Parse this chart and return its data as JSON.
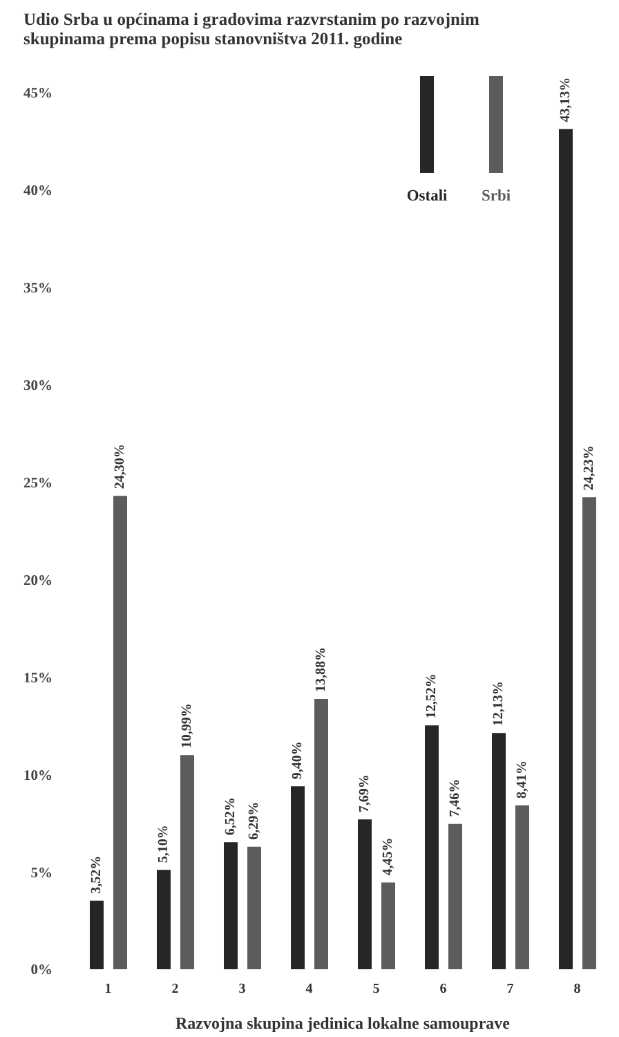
{
  "chart_data": {
    "type": "bar",
    "title": "Udio Srba u općinama i gradovima razvrstanim po razvojnim skupinama prema popisu stanovništva 2011. godine",
    "xlabel": "Razvojna skupina jedinica lokalne samouprave",
    "categories": [
      "1",
      "2",
      "3",
      "4",
      "5",
      "6",
      "7",
      "8"
    ],
    "series": [
      {
        "name": "Ostali",
        "color": "#262626",
        "values": [
          3.52,
          5.1,
          6.52,
          9.4,
          7.69,
          12.52,
          12.13,
          43.13
        ],
        "value_labels": [
          "3,52%",
          "5,10%",
          "6,52%",
          "9,40%",
          "7,69%",
          "12,52%",
          "12,13%",
          "43,13%"
        ]
      },
      {
        "name": "Srbi",
        "color": "#5c5c5c",
        "values": [
          24.3,
          10.99,
          6.29,
          13.88,
          4.45,
          7.46,
          8.41,
          24.23
        ],
        "value_labels": [
          "24,30%",
          "10,99%",
          "6,29%",
          "13,88%",
          "4,45%",
          "7,46%",
          "8,41%",
          "24,23%"
        ]
      }
    ],
    "ylim": [
      0,
      45
    ],
    "yticks": [
      {
        "value": 0,
        "label": "0%"
      },
      {
        "value": 5,
        "label": "5%"
      },
      {
        "value": 10,
        "label": "10%"
      },
      {
        "value": 15,
        "label": "15%"
      },
      {
        "value": 20,
        "label": "20%"
      },
      {
        "value": 25,
        "label": "25%"
      },
      {
        "value": 30,
        "label": "30%"
      },
      {
        "value": 35,
        "label": "35%"
      },
      {
        "value": 40,
        "label": "40%"
      },
      {
        "value": 45,
        "label": "45%"
      }
    ],
    "grid": false,
    "legend": "top right"
  }
}
